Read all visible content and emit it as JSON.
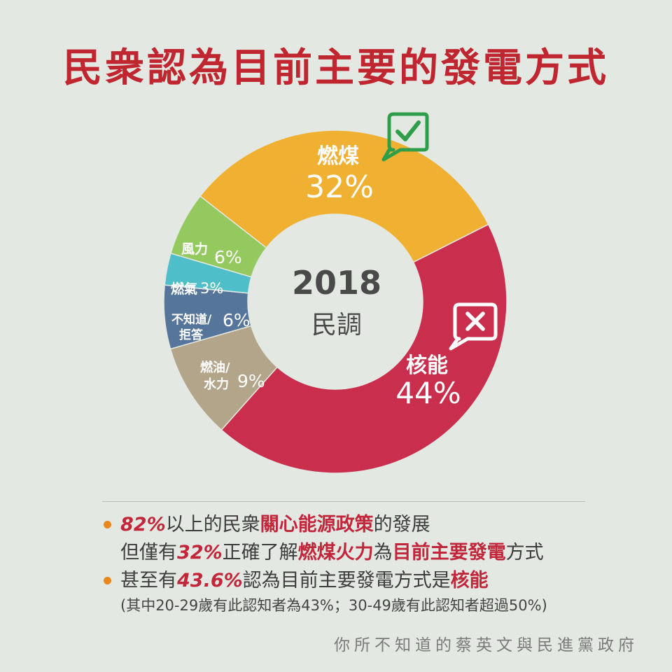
{
  "title": "民衆認為目前主要的發電方式",
  "center": {
    "year": "2018",
    "label": "民調"
  },
  "colors": {
    "coal": "#f0b133",
    "nuclear": "#c92f4c",
    "oil_hydro": "#b3a58a",
    "unknown": "#55769a",
    "gas": "#4ebfc9",
    "wind": "#93c95f",
    "check": "#2f9e4a",
    "accent_red": "#c2263a",
    "bullet": "#e8891c"
  },
  "chart_data": {
    "type": "pie",
    "title": "民衆認為目前主要的發電方式",
    "slices": [
      {
        "label": "燃煤",
        "value": 32,
        "value_label": "32%",
        "color": "#f0b133"
      },
      {
        "label": "核能",
        "value": 44,
        "value_label": "44%",
        "color": "#c92f4c"
      },
      {
        "label": "燃油/水力",
        "value": 9,
        "value_label": "9%",
        "color": "#b3a58a"
      },
      {
        "label": "不知道/拒答",
        "value": 6,
        "value_label": "6%",
        "color": "#55769a"
      },
      {
        "label": "燃氣",
        "value": 3,
        "value_label": "3%",
        "color": "#4ebfc9"
      },
      {
        "label": "風力",
        "value": 6,
        "value_label": "6%",
        "color": "#93c95f"
      }
    ],
    "icons": {
      "coal": "check-speech-bubble-icon",
      "nuclear": "x-speech-bubble-icon"
    }
  },
  "notes": {
    "l1_pct": "82%",
    "l1_a": "以上的民衆",
    "l1_red": "關心能源政策",
    "l1_b": "的發展",
    "l2_a": "但僅有",
    "l2_pct": "32%",
    "l2_b": "正確了解",
    "l2_red1": "燃煤火力",
    "l2_c": "為",
    "l2_red2": "目前主要發電",
    "l2_d": "方式",
    "l3_a": "甚至有",
    "l3_pct": "43.6%",
    "l3_b": "認為目前主要發電方式是",
    "l3_red": "核能",
    "l4": "(其中20-29歲有此認知者為43%；30-49歲有此認知者超過50%)"
  },
  "footer": "你所不知道的蔡英文與民進黨政府"
}
